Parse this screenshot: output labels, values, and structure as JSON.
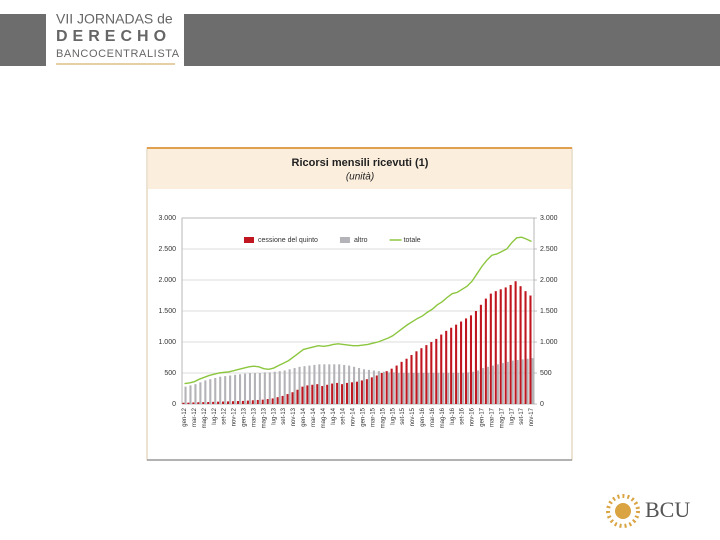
{
  "header": {
    "line1": "VII JORNADAS de",
    "line2": "DERECHO",
    "line3": "BANCOCENTRALISTA"
  },
  "footer_logo": "BCU",
  "chart_data": {
    "type": "bar",
    "title": "Ricorsi mensili ricevuti (1)",
    "subtitle": "(unità)",
    "categories": [
      "gen-12",
      null,
      "mar-12",
      null,
      "mag-12",
      null,
      "lug-12",
      null,
      "set-12",
      null,
      "nov-12",
      null,
      "gen-13",
      null,
      "mar-13",
      null,
      "mag-13",
      null,
      "lug-13",
      null,
      "set-13",
      null,
      "nov-13",
      null,
      "gen-14",
      null,
      "mar-14",
      null,
      "mag-14",
      null,
      "lug-14",
      null,
      "set-14",
      null,
      "nov-14",
      null,
      "gen-15",
      null,
      "mar-15",
      null,
      "mag-15",
      null,
      "lug-15",
      null,
      "set-15",
      null,
      "nov-15",
      null,
      "gen-16",
      null,
      "mar-16",
      null,
      "mag-16",
      null,
      "lug-16",
      null,
      "set-16",
      null,
      "nov-16",
      null,
      "gen-17",
      null,
      "mar-17",
      null,
      "mag-17",
      null,
      "lug-17",
      null,
      "set-17",
      null,
      "nov-17"
    ],
    "series": [
      {
        "name": "cessione del quinto",
        "color": "#c0161f",
        "kind": "bar",
        "values": [
          20,
          22,
          25,
          28,
          30,
          32,
          35,
          38,
          40,
          42,
          45,
          48,
          50,
          55,
          60,
          65,
          70,
          80,
          90,
          110,
          130,
          160,
          190,
          230,
          280,
          300,
          310,
          320,
          290,
          310,
          330,
          340,
          320,
          340,
          350,
          360,
          380,
          400,
          430,
          460,
          500,
          530,
          570,
          620,
          680,
          730,
          790,
          850,
          900,
          950,
          1000,
          1050,
          1120,
          1180,
          1230,
          1280,
          1330,
          1380,
          1430,
          1500,
          1600,
          1700,
          1780,
          1820,
          1850,
          1880,
          1920,
          1980,
          1900,
          1820,
          1750
        ]
      },
      {
        "name": "altro",
        "color": "#b3b3b8",
        "kind": "bar",
        "values": [
          280,
          300,
          320,
          350,
          380,
          400,
          420,
          440,
          450,
          460,
          470,
          480,
          490,
          500,
          500,
          500,
          510,
          510,
          520,
          530,
          540,
          560,
          580,
          600,
          610,
          620,
          630,
          640,
          640,
          640,
          640,
          640,
          630,
          620,
          600,
          580,
          560,
          550,
          540,
          530,
          520,
          510,
          510,
          500,
          500,
          500,
          500,
          500,
          500,
          500,
          500,
          500,
          500,
          500,
          500,
          500,
          500,
          510,
          520,
          540,
          580,
          600,
          620,
          640,
          660,
          680,
          700,
          710,
          720,
          730,
          740
        ]
      },
      {
        "name": "totale",
        "color": "#8cc63f",
        "kind": "line",
        "values": [
          330,
          340,
          360,
          400,
          430,
          460,
          480,
          500,
          510,
          520,
          540,
          560,
          580,
          600,
          610,
          600,
          570,
          560,
          580,
          620,
          660,
          700,
          760,
          820,
          880,
          900,
          920,
          940,
          930,
          940,
          960,
          970,
          960,
          950,
          940,
          940,
          950,
          960,
          980,
          1000,
          1030,
          1060,
          1100,
          1160,
          1220,
          1280,
          1330,
          1380,
          1420,
          1480,
          1530,
          1600,
          1650,
          1720,
          1780,
          1800,
          1850,
          1900,
          1980,
          2100,
          2220,
          2320,
          2400,
          2420,
          2460,
          2500,
          2600,
          2680,
          2690,
          2660,
          2620
        ]
      }
    ],
    "ylim": [
      0,
      3000
    ],
    "yticks": [
      0,
      500,
      {
        "value": 1000,
        "label": "1.000"
      },
      {
        "value": 1500,
        "label": "1.500"
      },
      {
        "value": 2000,
        "label": "2.000"
      },
      {
        "value": 2500,
        "label": "2.500"
      },
      {
        "value": 3000,
        "label": "3.000"
      }
    ],
    "y2lim": [
      0,
      3000
    ],
    "y2ticks": [
      0,
      500,
      {
        "value": 1000,
        "label": "1.000"
      },
      {
        "value": 1500,
        "label": "1.500"
      },
      {
        "value": 2000,
        "label": "2.000"
      },
      {
        "value": 2500,
        "label": "2.500"
      },
      {
        "value": 3000,
        "label": "3.000"
      }
    ],
    "grid": true,
    "legend": "top"
  }
}
